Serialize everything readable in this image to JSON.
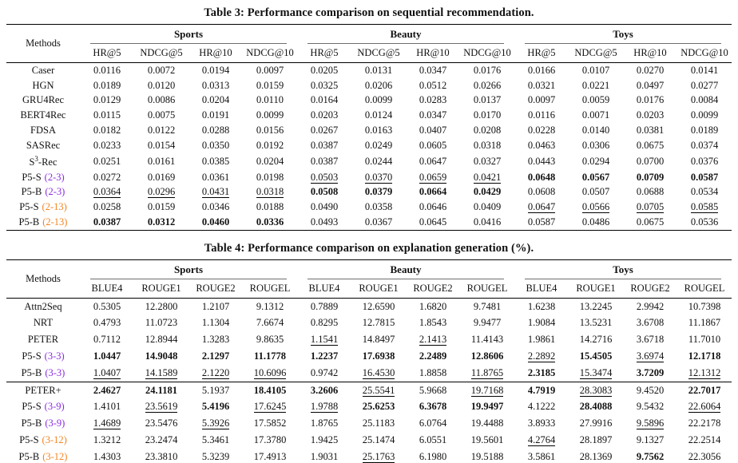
{
  "colors": {
    "purple": "#8B2BE2",
    "orange": "#F28522"
  },
  "tables": [
    {
      "title": "Table 3: Performance comparison on sequential recommendation.",
      "methods_header": "Methods",
      "groups": [
        "Sports",
        "Beauty",
        "Toys"
      ],
      "metrics": [
        "HR@5",
        "NDCG@5",
        "HR@10",
        "NDCG@10"
      ],
      "rule_before": null,
      "rows": [
        {
          "method": {
            "label": "Caser"
          },
          "values": [
            "0.0116",
            "0.0072",
            "0.0194",
            "0.0097",
            "0.0205",
            "0.0131",
            "0.0347",
            "0.0176",
            "0.0166",
            "0.0107",
            "0.0270",
            "0.0141"
          ],
          "styles": [
            "",
            "",
            "",
            "",
            "",
            "",
            "",
            "",
            "",
            "",
            "",
            ""
          ]
        },
        {
          "method": {
            "label": "HGN"
          },
          "values": [
            "0.0189",
            "0.0120",
            "0.0313",
            "0.0159",
            "0.0325",
            "0.0206",
            "0.0512",
            "0.0266",
            "0.0321",
            "0.0221",
            "0.0497",
            "0.0277"
          ],
          "styles": [
            "",
            "",
            "",
            "",
            "",
            "",
            "",
            "",
            "",
            "",
            "",
            ""
          ]
        },
        {
          "method": {
            "label": "GRU4Rec"
          },
          "values": [
            "0.0129",
            "0.0086",
            "0.0204",
            "0.0110",
            "0.0164",
            "0.0099",
            "0.0283",
            "0.0137",
            "0.0097",
            "0.0059",
            "0.0176",
            "0.0084"
          ],
          "styles": [
            "",
            "",
            "",
            "",
            "",
            "",
            "",
            "",
            "",
            "",
            "",
            ""
          ]
        },
        {
          "method": {
            "label": "BERT4Rec"
          },
          "values": [
            "0.0115",
            "0.0075",
            "0.0191",
            "0.0099",
            "0.0203",
            "0.0124",
            "0.0347",
            "0.0170",
            "0.0116",
            "0.0071",
            "0.0203",
            "0.0099"
          ],
          "styles": [
            "",
            "",
            "",
            "",
            "",
            "",
            "",
            "",
            "",
            "",
            "",
            ""
          ]
        },
        {
          "method": {
            "label": "FDSA"
          },
          "values": [
            "0.0182",
            "0.0122",
            "0.0288",
            "0.0156",
            "0.0267",
            "0.0163",
            "0.0407",
            "0.0208",
            "0.0228",
            "0.0140",
            "0.0381",
            "0.0189"
          ],
          "styles": [
            "",
            "",
            "",
            "",
            "",
            "",
            "",
            "",
            "",
            "",
            "",
            ""
          ]
        },
        {
          "method": {
            "label": "SASRec"
          },
          "values": [
            "0.0233",
            "0.0154",
            "0.0350",
            "0.0192",
            "0.0387",
            "0.0249",
            "0.0605",
            "0.0318",
            "0.0463",
            "0.0306",
            "0.0675",
            "0.0374"
          ],
          "styles": [
            "",
            "",
            "",
            "",
            "",
            "",
            "",
            "",
            "",
            "",
            "",
            ""
          ]
        },
        {
          "method": {
            "label": "S",
            "sup": "3",
            "suffix": "-Rec"
          },
          "values": [
            "0.0251",
            "0.0161",
            "0.0385",
            "0.0204",
            "0.0387",
            "0.0244",
            "0.0647",
            "0.0327",
            "0.0443",
            "0.0294",
            "0.0700",
            "0.0376"
          ],
          "styles": [
            "",
            "",
            "",
            "",
            "",
            "",
            "",
            "",
            "",
            "",
            "",
            ""
          ]
        },
        {
          "method": {
            "label": "P5-S",
            "tag": "(2-3)",
            "tag_color": "purple"
          },
          "values": [
            "0.0272",
            "0.0169",
            "0.0361",
            "0.0198",
            "0.0503",
            "0.0370",
            "0.0659",
            "0.0421",
            "0.0648",
            "0.0567",
            "0.0709",
            "0.0587"
          ],
          "styles": [
            "",
            "",
            "",
            "",
            "u",
            "u",
            "u",
            "u",
            "b",
            "b",
            "b",
            "b"
          ]
        },
        {
          "method": {
            "label": "P5-B",
            "tag": "(2-3)",
            "tag_color": "purple"
          },
          "values": [
            "0.0364",
            "0.0296",
            "0.0431",
            "0.0318",
            "0.0508",
            "0.0379",
            "0.0664",
            "0.0429",
            "0.0608",
            "0.0507",
            "0.0688",
            "0.0534"
          ],
          "styles": [
            "u",
            "u",
            "u",
            "u",
            "b",
            "b",
            "b",
            "b",
            "",
            "",
            "",
            ""
          ]
        },
        {
          "method": {
            "label": "P5-S",
            "tag": "(2-13)",
            "tag_color": "orange"
          },
          "values": [
            "0.0258",
            "0.0159",
            "0.0346",
            "0.0188",
            "0.0490",
            "0.0358",
            "0.0646",
            "0.0409",
            "0.0647",
            "0.0566",
            "0.0705",
            "0.0585"
          ],
          "styles": [
            "",
            "",
            "",
            "",
            "",
            "",
            "",
            "",
            "u",
            "u",
            "u",
            "u"
          ]
        },
        {
          "method": {
            "label": "P5-B",
            "tag": "(2-13)",
            "tag_color": "orange"
          },
          "values": [
            "0.0387",
            "0.0312",
            "0.0460",
            "0.0336",
            "0.0493",
            "0.0367",
            "0.0645",
            "0.0416",
            "0.0587",
            "0.0486",
            "0.0675",
            "0.0536"
          ],
          "styles": [
            "b",
            "b",
            "b",
            "b",
            "",
            "",
            "",
            "",
            "",
            "",
            "",
            ""
          ]
        }
      ]
    },
    {
      "title": "Table 4: Performance comparison on explanation generation (%).",
      "methods_header": "Methods",
      "groups": [
        "Sports",
        "Beauty",
        "Toys"
      ],
      "metrics": [
        "BLUE4",
        "ROUGE1",
        "ROUGE2",
        "ROUGEL"
      ],
      "rule_before": 5,
      "rows": [
        {
          "method": {
            "label": "Attn2Seq"
          },
          "values": [
            "0.5305",
            "12.2800",
            "1.2107",
            "9.1312",
            "0.7889",
            "12.6590",
            "1.6820",
            "9.7481",
            "1.6238",
            "13.2245",
            "2.9942",
            "10.7398"
          ],
          "styles": [
            "",
            "",
            "",
            "",
            "",
            "",
            "",
            "",
            "",
            "",
            "",
            ""
          ]
        },
        {
          "method": {
            "label": "NRT"
          },
          "values": [
            "0.4793",
            "11.0723",
            "1.1304",
            "7.6674",
            "0.8295",
            "12.7815",
            "1.8543",
            "9.9477",
            "1.9084",
            "13.5231",
            "3.6708",
            "11.1867"
          ],
          "styles": [
            "",
            "",
            "",
            "",
            "",
            "",
            "",
            "",
            "",
            "",
            "",
            ""
          ]
        },
        {
          "method": {
            "label": "PETER"
          },
          "values": [
            "0.7112",
            "12.8944",
            "1.3283",
            "9.8635",
            "1.1541",
            "14.8497",
            "2.1413",
            "11.4143",
            "1.9861",
            "14.2716",
            "3.6718",
            "11.7010"
          ],
          "styles": [
            "",
            "",
            "",
            "",
            "u",
            "",
            "u",
            "",
            "",
            "",
            "",
            ""
          ]
        },
        {
          "method": {
            "label": "P5-S",
            "tag": "(3-3)",
            "tag_color": "purple"
          },
          "values": [
            "1.0447",
            "14.9048",
            "2.1297",
            "11.1778",
            "1.2237",
            "17.6938",
            "2.2489",
            "12.8606",
            "2.2892",
            "15.4505",
            "3.6974",
            "12.1718"
          ],
          "styles": [
            "b",
            "b",
            "b",
            "b",
            "b",
            "b",
            "b",
            "b",
            "u",
            "b",
            "u",
            "b"
          ]
        },
        {
          "method": {
            "label": "P5-B",
            "tag": "(3-3)",
            "tag_color": "purple"
          },
          "values": [
            "1.0407",
            "14.1589",
            "2.1220",
            "10.6096",
            "0.9742",
            "16.4530",
            "1.8858",
            "11.8765",
            "2.3185",
            "15.3474",
            "3.7209",
            "12.1312"
          ],
          "styles": [
            "u",
            "u",
            "u",
            "u",
            "",
            "u",
            "",
            "u",
            "b",
            "u",
            "b",
            "u"
          ]
        },
        {
          "method": {
            "label": "PETER+"
          },
          "values": [
            "2.4627",
            "24.1181",
            "5.1937",
            "18.4105",
            "3.2606",
            "25.5541",
            "5.9668",
            "19.7168",
            "4.7919",
            "28.3083",
            "9.4520",
            "22.7017"
          ],
          "styles": [
            "b",
            "b",
            "",
            "b",
            "b",
            "u",
            "",
            "u",
            "b",
            "u",
            "",
            "b"
          ]
        },
        {
          "method": {
            "label": "P5-S",
            "tag": "(3-9)",
            "tag_color": "purple"
          },
          "values": [
            "1.4101",
            "23.5619",
            "5.4196",
            "17.6245",
            "1.9788",
            "25.6253",
            "6.3678",
            "19.9497",
            "4.1222",
            "28.4088",
            "9.5432",
            "22.6064"
          ],
          "styles": [
            "",
            "u",
            "b",
            "u",
            "u",
            "b",
            "b",
            "b",
            "",
            "b",
            "",
            "u"
          ]
        },
        {
          "method": {
            "label": "P5-B",
            "tag": "(3-9)",
            "tag_color": "purple"
          },
          "values": [
            "1.4689",
            "23.5476",
            "5.3926",
            "17.5852",
            "1.8765",
            "25.1183",
            "6.0764",
            "19.4488",
            "3.8933",
            "27.9916",
            "9.5896",
            "22.2178"
          ],
          "styles": [
            "u",
            "",
            "u",
            "",
            "",
            "",
            "",
            "",
            "",
            "",
            "u",
            ""
          ]
        },
        {
          "method": {
            "label": "P5-S",
            "tag": "(3-12)",
            "tag_color": "orange"
          },
          "values": [
            "1.3212",
            "23.2474",
            "5.3461",
            "17.3780",
            "1.9425",
            "25.1474",
            "6.0551",
            "19.5601",
            "4.2764",
            "28.1897",
            "9.1327",
            "22.2514"
          ],
          "styles": [
            "",
            "",
            "",
            "",
            "",
            "",
            "",
            "",
            "u",
            "",
            "",
            ""
          ]
        },
        {
          "method": {
            "label": "P5-B",
            "tag": "(3-12)",
            "tag_color": "orange"
          },
          "values": [
            "1.4303",
            "23.3810",
            "5.3239",
            "17.4913",
            "1.9031",
            "25.1763",
            "6.1980",
            "19.5188",
            "3.5861",
            "28.1369",
            "9.7562",
            "22.3056"
          ],
          "styles": [
            "",
            "",
            "",
            "",
            "",
            "u",
            "",
            "",
            "",
            "",
            "b",
            ""
          ]
        }
      ]
    }
  ]
}
